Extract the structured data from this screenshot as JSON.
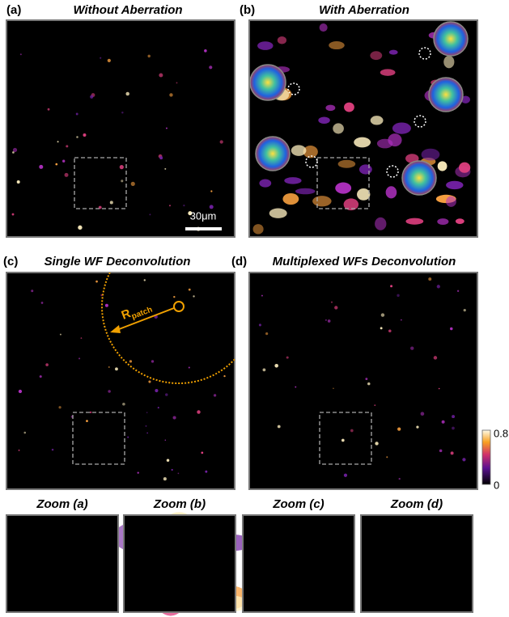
{
  "panels": [
    {
      "label": "(a)",
      "title": "Without Aberration"
    },
    {
      "label": "(b)",
      "title": "With Aberration"
    },
    {
      "label": "(c)",
      "title": "Single WF Deconvolution"
    },
    {
      "label": "(d)",
      "title": "Multiplexed WFs Deconvolution"
    }
  ],
  "scale_bar": "30μm",
  "r_patch": {
    "symbol": "R",
    "subscript": "patch"
  },
  "colorbar": {
    "max": 0.8,
    "min": 0
  },
  "zooms": [
    "Zoom (a)",
    "Zoom (b)",
    "Zoom (c)",
    "Zoom (d)"
  ]
}
